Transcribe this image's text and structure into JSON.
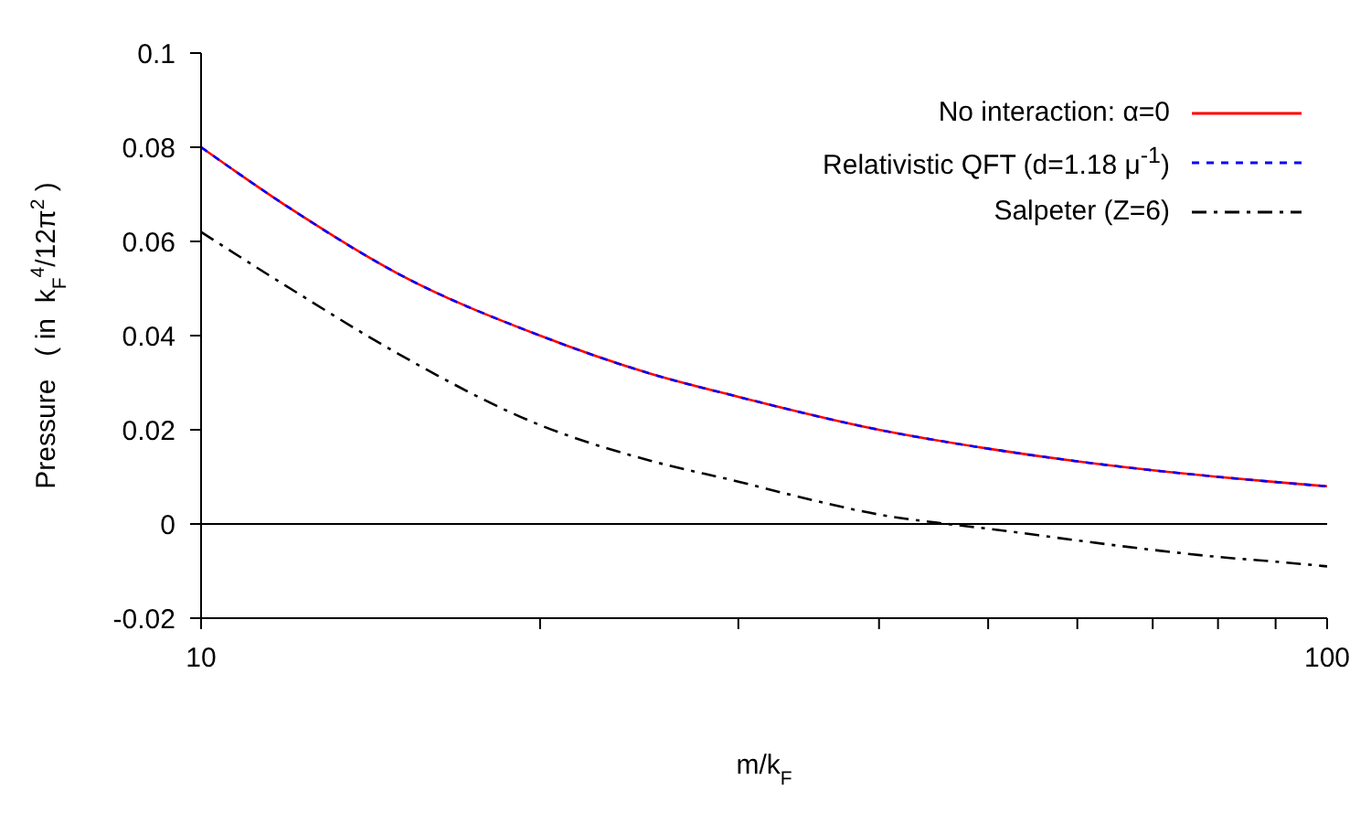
{
  "chart_data": {
    "type": "line",
    "xlabel": "m/k$_{F}$",
    "ylabel": "Pressure   ( in  k$_{F}$$^{4}$/12π$^{2}$ )",
    "log": "x",
    "xlim": [
      10,
      100
    ],
    "xticks": [
      10,
      {
        "value": 20,
        "label": null
      },
      {
        "value": 30,
        "label": null
      },
      {
        "value": 40,
        "label": null
      },
      {
        "value": 50,
        "label": null
      },
      {
        "value": 60,
        "label": null
      },
      {
        "value": 70,
        "label": null
      },
      {
        "value": 80,
        "label": null
      },
      {
        "value": 90,
        "label": null
      },
      100
    ],
    "ylim": [
      -0.02,
      0.1
    ],
    "yticks": [
      -0.02,
      0,
      0.02,
      0.04,
      0.06,
      0.08,
      0.1
    ],
    "grid": false,
    "legend": "top right",
    "ref_lines": [
      {
        "axis": "y",
        "value": 0,
        "color": "#000000"
      }
    ],
    "series": [
      {
        "name": "No interaction: α=0",
        "color": "#ff0000",
        "line_style": "solid",
        "x": [
          10,
          12,
          15,
          20,
          25,
          30,
          40,
          50,
          60,
          70,
          80,
          90,
          100
        ],
        "values": [
          0.08,
          0.067,
          0.053,
          0.04,
          0.032,
          0.027,
          0.02,
          0.016,
          0.0133,
          0.0114,
          0.01,
          0.0089,
          0.008
        ]
      },
      {
        "name": "Relativistic QFT (d=1.18 μ$^{-1}$)",
        "color": "#0000ff",
        "line_style": "dashed",
        "x": [
          10,
          12,
          15,
          20,
          25,
          30,
          40,
          50,
          60,
          70,
          80,
          90,
          100
        ],
        "values": [
          0.08,
          0.067,
          0.053,
          0.04,
          0.032,
          0.027,
          0.02,
          0.016,
          0.0133,
          0.0114,
          0.01,
          0.0089,
          0.008
        ]
      },
      {
        "name": "Salpeter (Z=6)",
        "color": "#000000",
        "line_style": "dashdot",
        "x": [
          10,
          12,
          15,
          20,
          25,
          30,
          35,
          40,
          46,
          50,
          60,
          70,
          80,
          90,
          100
        ],
        "values": [
          0.062,
          0.05,
          0.036,
          0.021,
          0.0135,
          0.009,
          0.005,
          0.002,
          0,
          -0.001,
          -0.0035,
          -0.0055,
          -0.007,
          -0.008,
          -0.009
        ]
      }
    ]
  }
}
